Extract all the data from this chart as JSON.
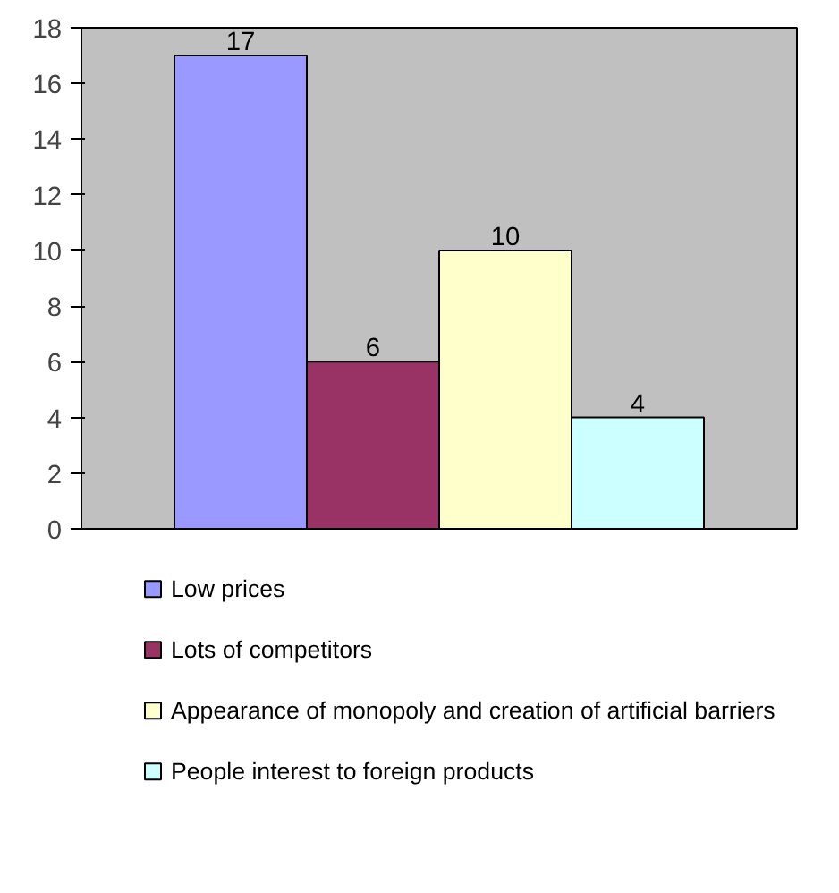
{
  "chart_data": {
    "type": "bar",
    "categories": [
      null
    ],
    "series": [
      {
        "name": "Low prices",
        "color": "#9999ff",
        "values": [
          17
        ]
      },
      {
        "name": "Lots of competitors",
        "color": "#993366",
        "values": [
          6
        ]
      },
      {
        "name": "Appearance of monopoly and creation of artificial barriers",
        "color": "#ffffcc",
        "values": [
          10
        ]
      },
      {
        "name": "People interest to foreign products",
        "color": "#ccffff",
        "values": [
          4
        ]
      }
    ],
    "ylim": [
      0,
      18
    ],
    "yticks": [
      0,
      2,
      4,
      6,
      8,
      10,
      12,
      14,
      16,
      18
    ],
    "grid": false,
    "legend": "bottom",
    "data_labels": true
  }
}
